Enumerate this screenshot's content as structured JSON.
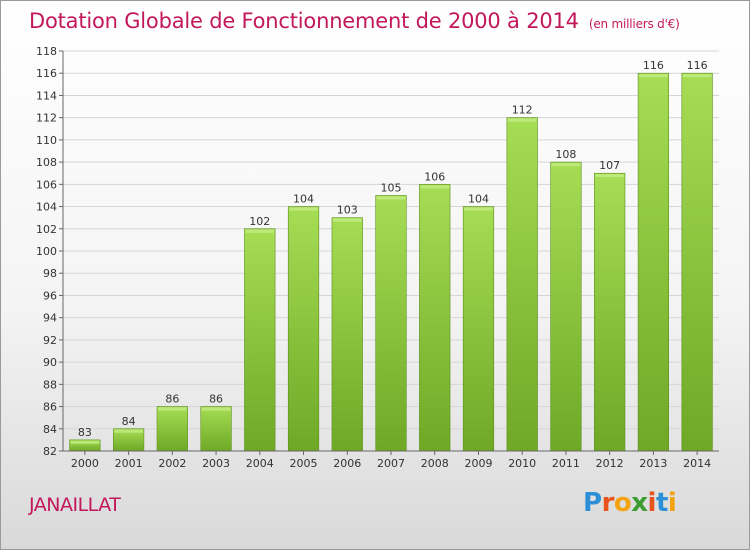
{
  "header": {
    "title": "Dotation Globale de Fonctionnement de 2000 à 2014",
    "unit": "(en milliers d'€)"
  },
  "commune": "JANAILLAT",
  "logo": {
    "text": "Proxiti",
    "letter_colors": [
      "#2d8fd5",
      "#e8521c",
      "#f2a30f",
      "#3c9c2f",
      "#e8521c",
      "#2d8fd5",
      "#f2a30f"
    ]
  },
  "colors": {
    "bar_light": "#a6dd55",
    "bar_dark": "#6ea825",
    "text_accent": "#c2185b"
  },
  "chart_data": {
    "type": "bar",
    "title": "Dotation Globale de Fonctionnement de 2000 à 2014",
    "subtitle": "(en milliers d'€)",
    "categories": [
      "2000",
      "2001",
      "2002",
      "2003",
      "2004",
      "2005",
      "2006",
      "2007",
      "2008",
      "2009",
      "2010",
      "2011",
      "2012",
      "2013",
      "2014"
    ],
    "values": [
      83,
      84,
      86,
      86,
      102,
      104,
      103,
      105,
      106,
      104,
      112,
      108,
      107,
      116,
      116
    ],
    "ylim": [
      82,
      118
    ],
    "yticks": [
      82,
      84,
      86,
      88,
      90,
      92,
      94,
      96,
      98,
      100,
      102,
      104,
      106,
      108,
      110,
      112,
      114,
      116,
      118
    ],
    "xlabel": "",
    "ylabel": "",
    "grid": true,
    "legend": "none"
  }
}
